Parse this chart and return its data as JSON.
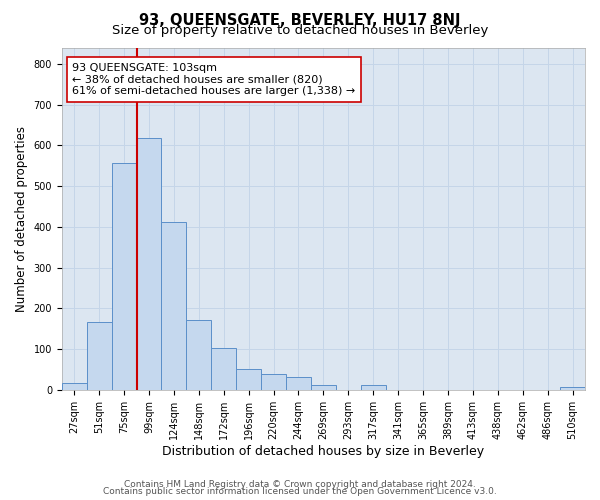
{
  "title": "93, QUEENSGATE, BEVERLEY, HU17 8NJ",
  "subtitle": "Size of property relative to detached houses in Beverley",
  "xlabel": "Distribution of detached houses by size in Beverley",
  "ylabel": "Number of detached properties",
  "bin_labels": [
    "27sqm",
    "51sqm",
    "75sqm",
    "99sqm",
    "124sqm",
    "148sqm",
    "172sqm",
    "196sqm",
    "220sqm",
    "244sqm",
    "269sqm",
    "293sqm",
    "317sqm",
    "341sqm",
    "365sqm",
    "389sqm",
    "413sqm",
    "438sqm",
    "462sqm",
    "486sqm",
    "510sqm"
  ],
  "bar_heights": [
    18,
    167,
    557,
    617,
    413,
    171,
    102,
    51,
    39,
    32,
    13,
    0,
    12,
    0,
    0,
    0,
    0,
    0,
    0,
    0,
    8
  ],
  "bar_color": "#c5d8ee",
  "bar_edge_color": "#5b8fc9",
  "property_line_bin_index": 3,
  "property_line_color": "#cc0000",
  "annotation_text": "93 QUEENSGATE: 103sqm\n← 38% of detached houses are smaller (820)\n61% of semi-detached houses are larger (1,338) →",
  "annotation_box_facecolor": "#ffffff",
  "annotation_box_edgecolor": "#cc0000",
  "ylim": [
    0,
    840
  ],
  "yticks": [
    0,
    100,
    200,
    300,
    400,
    500,
    600,
    700,
    800
  ],
  "grid_color": "#c5d5e8",
  "background_color": "#dce6f1",
  "footer_line1": "Contains HM Land Registry data © Crown copyright and database right 2024.",
  "footer_line2": "Contains public sector information licensed under the Open Government Licence v3.0.",
  "title_fontsize": 10.5,
  "subtitle_fontsize": 9.5,
  "ylabel_fontsize": 8.5,
  "xlabel_fontsize": 9,
  "tick_fontsize": 7,
  "annotation_fontsize": 8,
  "footer_fontsize": 6.5
}
